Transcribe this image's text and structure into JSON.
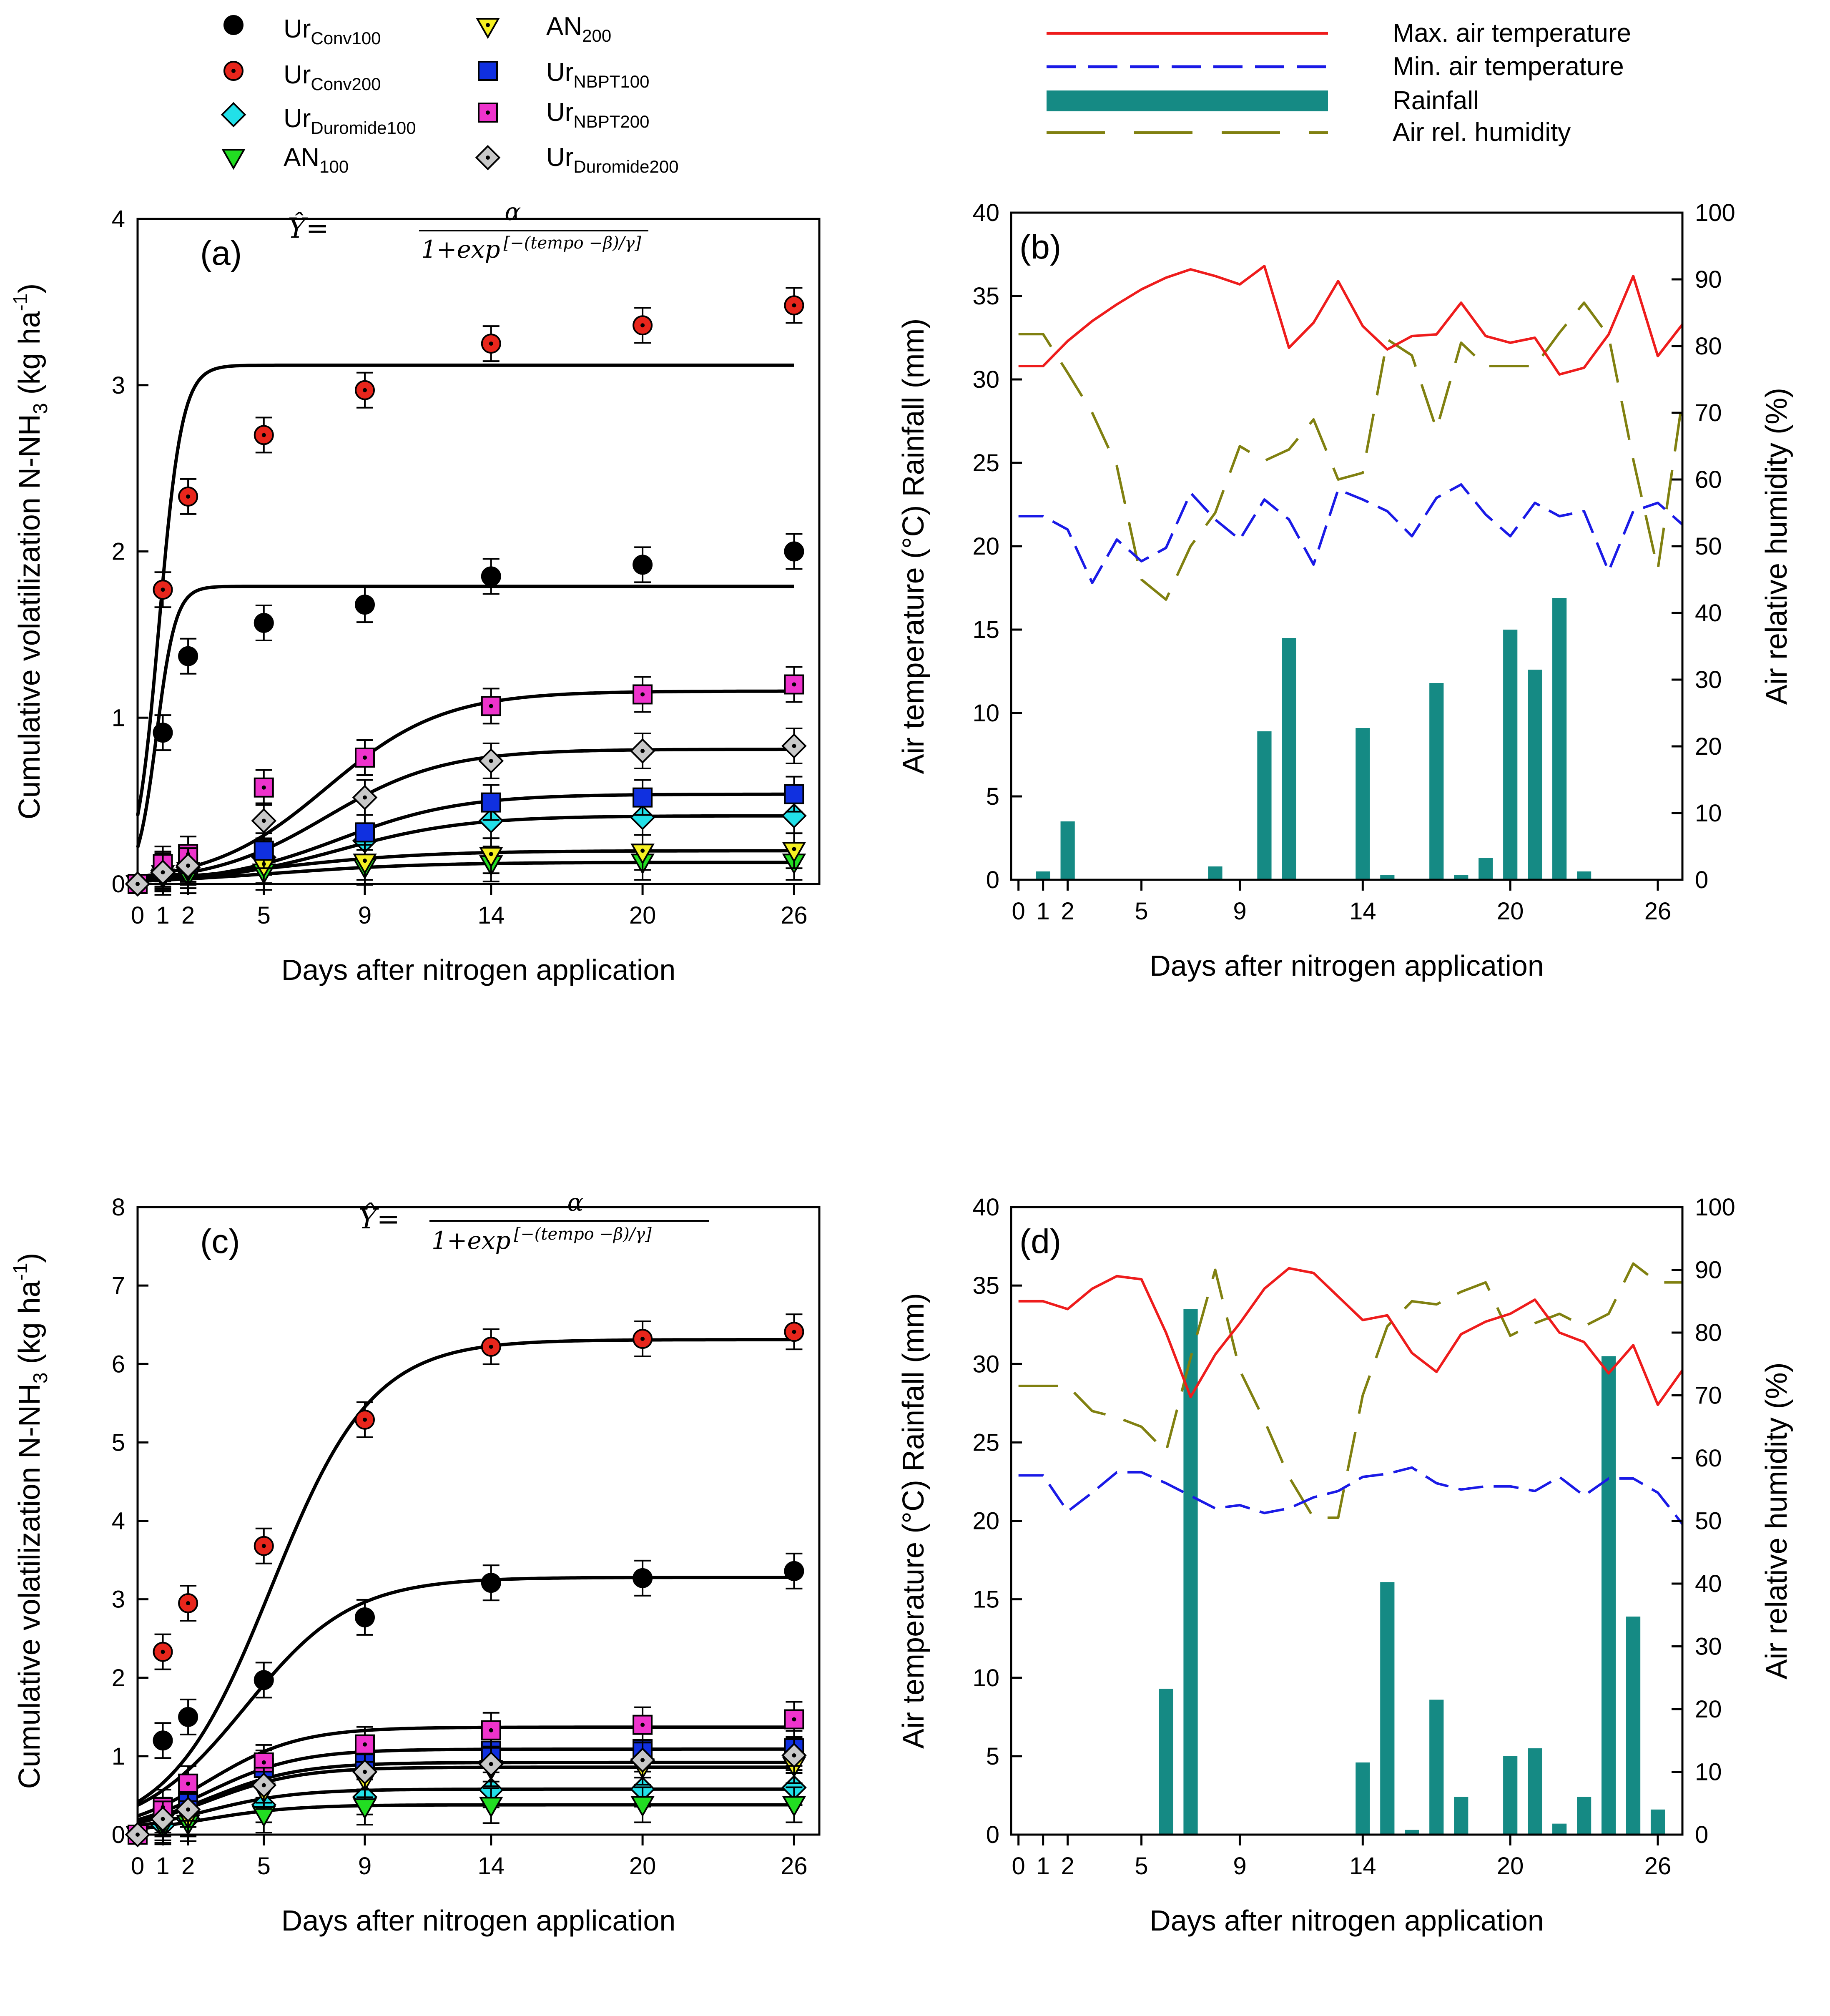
{
  "legend_a": {
    "items": [
      {
        "id": "conv100",
        "base": "Ur",
        "sub": "Conv100",
        "marker": "circle",
        "fill": "#000000",
        "dot": false
      },
      {
        "id": "conv200",
        "base": "Ur",
        "sub": "Conv200",
        "marker": "circle",
        "fill": "#e8261c",
        "dot": true
      },
      {
        "id": "duro100",
        "base": "Ur",
        "sub": "Duromide100",
        "marker": "diamond",
        "fill": "#22e0e8",
        "dot": false
      },
      {
        "id": "an100",
        "base": "AN",
        "sub": "100",
        "marker": "triangle-down",
        "fill": "#22dd22",
        "dot": false
      },
      {
        "id": "an200",
        "base": "AN",
        "sub": "200",
        "marker": "triangle-down",
        "fill": "#f5f022",
        "dot": true
      },
      {
        "id": "nbpt100",
        "base": "Ur",
        "sub": "NBPT100",
        "marker": "square",
        "fill": "#1030e0",
        "dot": false
      },
      {
        "id": "nbpt200",
        "base": "Ur",
        "sub": "NBPT200",
        "marker": "square",
        "fill": "#ee33cc",
        "dot": true
      },
      {
        "id": "duro200",
        "base": "Ur",
        "sub": "Duromide200",
        "marker": "diamond",
        "fill": "#c8c8c8",
        "dot": true
      }
    ]
  },
  "legend_b": {
    "items": [
      {
        "id": "tmax",
        "label": "Max. air temperature",
        "color": "#ee1c1c",
        "style": "solid"
      },
      {
        "id": "tmin",
        "label": "Min. air temperature",
        "color": "#1a1ae6",
        "style": "dash"
      },
      {
        "id": "rain",
        "label": "Rainfall",
        "color": "#158a84",
        "style": "bar"
      },
      {
        "id": "hum",
        "label": "Air rel. humidity",
        "color": "#808010",
        "style": "longdash"
      }
    ]
  },
  "equation": {
    "lhs": "Ŷ=",
    "numerator": "α",
    "den_a": "1+exp",
    "den_b": "[−(tempo  −β)/γ]"
  },
  "chart_data": [
    {
      "id": "a",
      "type": "scatter",
      "panel_label": "(a)",
      "xlabel": "Days after nitrogen application",
      "ylabel_pre": "Cumulative volatilization N-NH",
      "ylabel_sub": "3",
      "ylabel_mid": " (kg ha",
      "ylabel_sup": "-1",
      "ylabel_post": ")",
      "xlim": [
        0,
        27
      ],
      "ylim": [
        0,
        4
      ],
      "xticks": [
        0,
        1,
        2,
        5,
        9,
        14,
        20,
        26
      ],
      "yticks": [
        0,
        1,
        2,
        3,
        4
      ],
      "days": [
        0,
        1,
        2,
        5,
        9,
        14,
        20,
        26
      ],
      "series": [
        {
          "id": "conv100",
          "values": [
            0,
            0.91,
            1.37,
            1.57,
            1.68,
            1.85,
            1.92,
            2.0
          ],
          "fit": {
            "alpha": 1.79,
            "beta": 0.75,
            "gamma": 0.38
          }
        },
        {
          "id": "conv200",
          "values": [
            0,
            1.77,
            2.33,
            2.7,
            2.97,
            3.25,
            3.36,
            3.48
          ],
          "fit": {
            "alpha": 3.12,
            "beta": 0.85,
            "gamma": 0.45
          }
        },
        {
          "id": "duro100",
          "values": [
            0,
            0.08,
            0.1,
            0.16,
            0.26,
            0.38,
            0.4,
            0.41
          ],
          "fit": {
            "alpha": 0.41,
            "beta": 8.0,
            "gamma": 2.5
          }
        },
        {
          "id": "an100",
          "values": [
            0,
            0.04,
            0.05,
            0.07,
            0.1,
            0.12,
            0.13,
            0.13
          ],
          "fit": {
            "alpha": 0.13,
            "beta": 5.5,
            "gamma": 3.0
          }
        },
        {
          "id": "an200",
          "values": [
            0,
            0.06,
            0.08,
            0.11,
            0.13,
            0.17,
            0.19,
            0.2
          ],
          "fit": {
            "alpha": 0.2,
            "beta": 5.5,
            "gamma": 3.0
          }
        },
        {
          "id": "nbpt100",
          "values": [
            0,
            0.09,
            0.12,
            0.2,
            0.31,
            0.49,
            0.52,
            0.54
          ],
          "fit": {
            "alpha": 0.54,
            "beta": 8.0,
            "gamma": 2.4
          }
        },
        {
          "id": "nbpt200",
          "values": [
            0,
            0.12,
            0.18,
            0.58,
            0.76,
            1.07,
            1.14,
            1.2
          ],
          "fit": {
            "alpha": 1.16,
            "beta": 7.5,
            "gamma": 2.3
          }
        },
        {
          "id": "duro200",
          "values": [
            0,
            0.07,
            0.11,
            0.38,
            0.52,
            0.74,
            0.8,
            0.83
          ],
          "fit": {
            "alpha": 0.81,
            "beta": 7.5,
            "gamma": 2.3
          }
        }
      ]
    },
    {
      "id": "b",
      "type": "line",
      "panel_label": "(b)",
      "xlabel": "Days after nitrogen application",
      "ylabel": "Air temperature (°C) Rainfall (mm)",
      "ylabel_right": "Air relative humidity (%)",
      "xlim": [
        -0.3,
        27
      ],
      "ylim": [
        0,
        40
      ],
      "ylim_right": [
        0,
        100
      ],
      "xticks": [
        0,
        1,
        2,
        5,
        9,
        14,
        20,
        26
      ],
      "yticks": [
        0,
        5,
        10,
        15,
        20,
        25,
        30,
        35,
        40
      ],
      "yticks_right": [
        0,
        10,
        20,
        30,
        40,
        50,
        60,
        70,
        80,
        90,
        100
      ],
      "x": [
        0,
        1,
        2,
        3,
        4,
        5,
        6,
        7,
        8,
        9,
        10,
        11,
        12,
        13,
        14,
        15,
        16,
        17,
        18,
        19,
        20,
        21,
        22,
        23,
        24,
        25,
        26,
        27
      ],
      "tmax": [
        30.8,
        30.8,
        32.3,
        33.5,
        34.5,
        35.4,
        36.1,
        36.6,
        36.2,
        35.7,
        36.8,
        31.9,
        33.4,
        35.9,
        33.2,
        31.8,
        32.6,
        32.7,
        34.6,
        32.6,
        32.2,
        32.5,
        30.3,
        30.7,
        32.7,
        36.2,
        31.4,
        33.3
      ],
      "tmin": [
        21.8,
        21.8,
        21.0,
        17.8,
        20.4,
        19.1,
        19.9,
        23.2,
        21.6,
        20.4,
        22.8,
        21.6,
        18.9,
        23.4,
        22.8,
        22.1,
        20.6,
        22.9,
        23.7,
        21.9,
        20.6,
        22.6,
        21.8,
        22.1,
        18.5,
        22.1,
        22.6,
        21.3
      ],
      "hum": [
        81.8,
        81.8,
        76.0,
        70.0,
        62.0,
        45.0,
        42.0,
        50.0,
        55.0,
        65.0,
        62.8,
        64.5,
        69.0,
        60.0,
        61.0,
        81.0,
        78.6,
        67.5,
        80.5,
        77.0,
        77.0,
        77.0,
        82.0,
        86.5,
        81.5,
        63.0,
        46.5,
        72.0
      ],
      "rain": [
        0,
        0.5,
        3.5,
        0,
        0,
        0,
        0,
        0,
        0.8,
        0,
        8.9,
        14.5,
        0,
        0,
        9.1,
        0.3,
        0,
        11.8,
        0.3,
        1.3,
        15.0,
        12.6,
        16.9,
        0.5,
        0,
        0,
        0,
        0
      ]
    },
    {
      "id": "c",
      "type": "scatter",
      "panel_label": "(c)",
      "xlabel": "Days after nitrogen application",
      "ylabel_pre": "Cumulative volatilization N-NH",
      "ylabel_sub": "3",
      "ylabel_mid": " (kg ha",
      "ylabel_sup": "-1",
      "ylabel_post": ")",
      "xlim": [
        0,
        27
      ],
      "ylim": [
        0,
        8
      ],
      "xticks": [
        0,
        1,
        2,
        5,
        9,
        14,
        20,
        26
      ],
      "yticks": [
        0,
        1,
        2,
        3,
        4,
        5,
        6,
        7,
        8
      ],
      "days": [
        0,
        1,
        2,
        5,
        9,
        14,
        20,
        26
      ],
      "series": [
        {
          "id": "conv100",
          "values": [
            0,
            1.2,
            1.5,
            1.97,
            2.77,
            3.21,
            3.27,
            3.36
          ],
          "fit": {
            "alpha": 3.28,
            "beta": 4.3,
            "gamma": 2.1
          }
        },
        {
          "id": "conv200",
          "values": [
            0,
            2.33,
            2.95,
            3.68,
            5.29,
            6.22,
            6.32,
            6.41
          ],
          "fit": {
            "alpha": 6.31,
            "beta": 5.3,
            "gamma": 2.0
          }
        },
        {
          "id": "duro100",
          "values": [
            0,
            0.12,
            0.2,
            0.38,
            0.48,
            0.57,
            0.58,
            0.6
          ],
          "fit": {
            "alpha": 0.58,
            "beta": 2.6,
            "gamma": 1.8
          }
        },
        {
          "id": "an100",
          "values": [
            0,
            0.1,
            0.14,
            0.25,
            0.35,
            0.37,
            0.38,
            0.38
          ],
          "fit": {
            "alpha": 0.38,
            "beta": 2.6,
            "gamma": 1.8
          }
        },
        {
          "id": "an200",
          "values": [
            0,
            0.15,
            0.22,
            0.55,
            0.7,
            0.84,
            0.86,
            0.88
          ],
          "fit": {
            "alpha": 0.86,
            "beta": 2.8,
            "gamma": 1.8
          }
        },
        {
          "id": "nbpt100",
          "values": [
            0,
            0.25,
            0.4,
            0.85,
            0.95,
            1.07,
            1.09,
            1.1
          ],
          "fit": {
            "alpha": 1.09,
            "beta": 2.8,
            "gamma": 1.8
          }
        },
        {
          "id": "nbpt200",
          "values": [
            0,
            0.35,
            0.65,
            0.92,
            1.15,
            1.33,
            1.4,
            1.47
          ],
          "fit": {
            "alpha": 1.37,
            "beta": 2.8,
            "gamma": 1.8
          }
        },
        {
          "id": "duro200",
          "values": [
            0,
            0.2,
            0.32,
            0.63,
            0.8,
            0.9,
            0.95,
            1.01
          ],
          "fit": {
            "alpha": 0.92,
            "beta": 2.8,
            "gamma": 1.8
          }
        }
      ]
    },
    {
      "id": "d",
      "type": "line",
      "panel_label": "(d)",
      "xlabel": "Days after nitrogen application",
      "ylabel": "Air temperature (°C) Rainfall (mm)",
      "ylabel_right": "Air relative humidity (%)",
      "xlim": [
        -0.3,
        27
      ],
      "ylim": [
        0,
        40
      ],
      "ylim_right": [
        0,
        100
      ],
      "xticks": [
        0,
        1,
        2,
        5,
        9,
        14,
        20,
        26
      ],
      "yticks": [
        0,
        5,
        10,
        15,
        20,
        25,
        30,
        35,
        40
      ],
      "yticks_right": [
        0,
        10,
        20,
        30,
        40,
        50,
        60,
        70,
        80,
        90,
        100
      ],
      "x": [
        0,
        1,
        2,
        3,
        4,
        5,
        6,
        7,
        8,
        9,
        10,
        11,
        12,
        13,
        14,
        15,
        16,
        17,
        18,
        19,
        20,
        21,
        22,
        23,
        24,
        25,
        26,
        27
      ],
      "tmax": [
        34.0,
        34.0,
        33.5,
        34.8,
        35.6,
        35.4,
        32.0,
        27.9,
        30.6,
        32.6,
        34.8,
        36.1,
        35.8,
        34.3,
        32.8,
        33.1,
        30.7,
        29.5,
        31.9,
        32.7,
        33.2,
        34.1,
        32.0,
        31.4,
        29.4,
        31.2,
        27.4,
        29.6
      ],
      "tmin": [
        22.9,
        22.9,
        20.6,
        21.8,
        23.1,
        23.1,
        22.4,
        21.6,
        20.8,
        21.0,
        20.5,
        20.8,
        21.5,
        21.9,
        22.8,
        23.0,
        23.4,
        22.4,
        22.0,
        22.2,
        22.2,
        21.9,
        22.8,
        21.6,
        22.7,
        22.7,
        21.8,
        19.8
      ],
      "hum": [
        71.5,
        71.5,
        71.5,
        67.5,
        66.5,
        65.0,
        61.0,
        76.0,
        90.0,
        74.0,
        66.0,
        57.0,
        50.5,
        50.5,
        70.0,
        81.0,
        85.0,
        84.5,
        86.5,
        88.0,
        79.5,
        81.5,
        83.0,
        81.0,
        83.0,
        91.0,
        88.0,
        88.0
      ],
      "rain": [
        0,
        0,
        0,
        0,
        0,
        0,
        9.3,
        33.5,
        0,
        0,
        0,
        0,
        0,
        0,
        4.6,
        16.1,
        0.3,
        8.6,
        2.4,
        0,
        5.0,
        5.5,
        0.7,
        2.4,
        30.5,
        13.9,
        1.6,
        0
      ]
    }
  ]
}
